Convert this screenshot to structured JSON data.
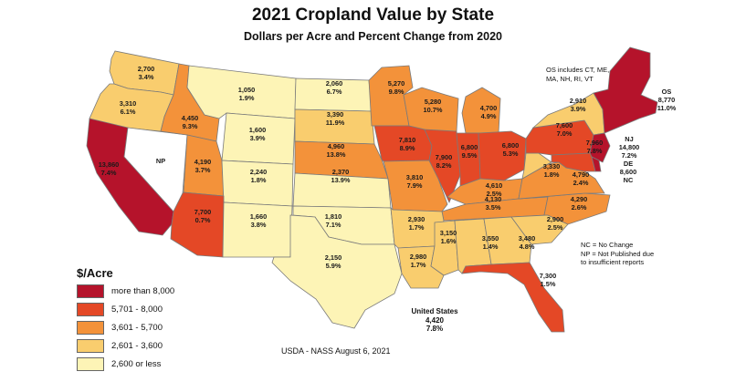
{
  "title": "2021 Cropland Value by State",
  "subtitle": "Dollars per Acre and Percent Change from 2020",
  "colors": {
    "more_than_8000": "#b5132b",
    "5701_8000": "#e44826",
    "3601_5700": "#f3923a",
    "2601_3600": "#f9cd6e",
    "2600_or_less": "#fdf4b6",
    "not_published": "#ffffff"
  },
  "legend": {
    "title": "$/Acre",
    "items": [
      {
        "label": "more than 8,000",
        "color": "#b5132b"
      },
      {
        "label": "5,701 - 8,000",
        "color": "#e44826"
      },
      {
        "label": "3,601 - 5,700",
        "color": "#f3923a"
      },
      {
        "label": "2,601 - 3,600",
        "color": "#f9cd6e"
      },
      {
        "label": "2,600 or less",
        "color": "#fdf4b6"
      }
    ]
  },
  "states": {
    "WA": {
      "value": "2,700",
      "change": "3.4%",
      "class": "2601_3600"
    },
    "OR": {
      "value": "3,310",
      "change": "6.1%",
      "class": "2601_3600"
    },
    "CA": {
      "value": "13,860",
      "change": "7.4%",
      "class": "more_than_8000"
    },
    "NV": {
      "value": "NP",
      "change": "",
      "class": "not_published"
    },
    "ID": {
      "value": "4,450",
      "change": "9.3%",
      "class": "3601_5700"
    },
    "MT": {
      "value": "1,050",
      "change": "1.9%",
      "class": "2600_or_less"
    },
    "WY": {
      "value": "1,600",
      "change": "3.9%",
      "class": "2600_or_less"
    },
    "UT": {
      "value": "4,190",
      "change": "3.7%",
      "class": "3601_5700"
    },
    "CO": {
      "value": "2,240",
      "change": "1.8%",
      "class": "2600_or_less"
    },
    "AZ": {
      "value": "7,700",
      "change": "0.7%",
      "class": "5701_8000"
    },
    "NM": {
      "value": "1,660",
      "change": "3.8%",
      "class": "2600_or_less"
    },
    "ND": {
      "value": "2,060",
      "change": "6.7%",
      "class": "2600_or_less"
    },
    "SD": {
      "value": "3,390",
      "change": "11.9%",
      "class": "2601_3600"
    },
    "NE": {
      "value": "4,960",
      "change": "13.8%",
      "class": "3601_5700"
    },
    "KS": {
      "value": "2,370",
      "change": "13.9%",
      "class": "2600_or_less"
    },
    "OK": {
      "value": "1,810",
      "change": "7.1%",
      "class": "2600_or_less"
    },
    "TX": {
      "value": "2,150",
      "change": "5.9%",
      "class": "2600_or_less"
    },
    "MN": {
      "value": "5,270",
      "change": "9.8%",
      "class": "3601_5700"
    },
    "IA": {
      "value": "7,810",
      "change": "8.9%",
      "class": "5701_8000"
    },
    "MO": {
      "value": "3,810",
      "change": "7.9%",
      "class": "3601_5700"
    },
    "AR": {
      "value": "2,930",
      "change": "1.7%",
      "class": "2601_3600"
    },
    "LA": {
      "value": "2,980",
      "change": "1.7%",
      "class": "2601_3600"
    },
    "WI": {
      "value": "5,280",
      "change": "10.7%",
      "class": "3601_5700"
    },
    "IL": {
      "value": "7,900",
      "change": "8.2%",
      "class": "5701_8000"
    },
    "MS": {
      "value": "3,150",
      "change": "1.6%",
      "class": "2601_3600"
    },
    "MI": {
      "value": "4,700",
      "change": "4.9%",
      "class": "3601_5700"
    },
    "IN": {
      "value": "6,800",
      "change": "9.5%",
      "class": "5701_8000"
    },
    "OH": {
      "value": "6,800",
      "change": "5.3%",
      "class": "5701_8000"
    },
    "KY": {
      "value": "4,610",
      "change": "2.5%",
      "class": "3601_5700"
    },
    "TN": {
      "value": "4,130",
      "change": "3.5%",
      "class": "3601_5700"
    },
    "AL": {
      "value": "3,550",
      "change": "1.4%",
      "class": "2601_3600"
    },
    "GA": {
      "value": "3,480",
      "change": "4.8%",
      "class": "2601_3600"
    },
    "FL": {
      "value": "7,300",
      "change": "1.5%",
      "class": "5701_8000"
    },
    "SC": {
      "value": "2,900",
      "change": "2.5%",
      "class": "2601_3600"
    },
    "NC": {
      "value": "4,290",
      "change": "2.6%",
      "class": "3601_5700"
    },
    "VA": {
      "value": "4,790",
      "change": "2.4%",
      "class": "3601_5700"
    },
    "WV": {
      "value": "3,330",
      "change": "1.8%",
      "class": "2601_3600"
    },
    "PA": {
      "value": "7,600",
      "change": "7.0%",
      "class": "5701_8000"
    },
    "NY": {
      "value": "2,910",
      "change": "3.9%",
      "class": "2601_3600"
    },
    "MD": {
      "value": "7,960",
      "change": "7.8%",
      "class": "5701_8000"
    },
    "NJ": {
      "value": "14,800",
      "change": "7.2%",
      "name": "NJ",
      "class": "more_than_8000"
    },
    "DE": {
      "value": "8,600",
      "change": "NC",
      "name": "DE",
      "class": "more_than_8000"
    },
    "OS": {
      "value": "8,770",
      "change": "11.0%",
      "name": "OS",
      "class": "more_than_8000"
    }
  },
  "notes": {
    "os_includes_line1": "OS includes CT, ME,",
    "os_includes_line2": "MA, NH, RI, VT",
    "nc_line": "NC = No Change",
    "np_line1": "NP = Not Published due",
    "np_line2": "to insufficient reports"
  },
  "us_total": {
    "label": "United States",
    "value": "4,420",
    "change": "7.8%"
  },
  "source": "USDA - NASS August 6, 2021"
}
